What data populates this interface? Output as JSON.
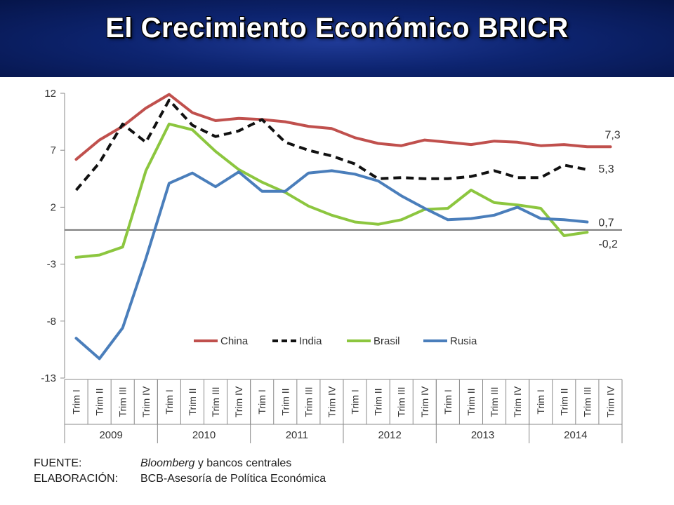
{
  "slide": {
    "title": "El Crecimiento Económico BRICR"
  },
  "chart_data": {
    "type": "line",
    "x": [
      "Trim I",
      "Trim II",
      "Trim III",
      "Trim IV",
      "Trim I",
      "Trim II",
      "Trim III",
      "Trim IV",
      "Trim I",
      "Trim II",
      "Trim III",
      "Trim IV",
      "Trim I",
      "Trim II",
      "Trim III",
      "Trim IV",
      "Trim I",
      "Trim II",
      "Trim III",
      "Trim IV",
      "Trim I",
      "Trim II",
      "Trim III",
      "Trim IV"
    ],
    "year_groups": [
      {
        "label": "2009",
        "start": 0,
        "count": 4
      },
      {
        "label": "2010",
        "start": 4,
        "count": 4
      },
      {
        "label": "2011",
        "start": 8,
        "count": 4
      },
      {
        "label": "2012",
        "start": 12,
        "count": 4
      },
      {
        "label": "2013",
        "start": 16,
        "count": 4
      },
      {
        "label": "2014",
        "start": 20,
        "count": 4
      }
    ],
    "ylim": [
      -13,
      12
    ],
    "yticks": [
      12,
      7,
      2,
      -3,
      -8,
      -13
    ],
    "zero_line": 0,
    "series": [
      {
        "name": "China",
        "color": "#c0504d",
        "dash": "solid",
        "values": [
          6.2,
          7.9,
          9.1,
          10.7,
          11.9,
          10.3,
          9.6,
          9.8,
          9.7,
          9.5,
          9.1,
          8.9,
          8.1,
          7.6,
          7.4,
          7.9,
          7.7,
          7.5,
          7.8,
          7.7,
          7.4,
          7.5,
          7.3,
          7.3
        ],
        "end_label": "7,3"
      },
      {
        "name": "India",
        "color": "#111111",
        "dash": "dashed",
        "values": [
          3.5,
          5.9,
          9.3,
          7.7,
          11.4,
          9.2,
          8.2,
          8.7,
          9.7,
          7.7,
          7.0,
          6.5,
          5.8,
          4.5,
          4.6,
          4.5,
          4.5,
          4.7,
          5.2,
          4.6,
          4.6,
          5.7,
          5.3,
          null
        ],
        "end_label": "5,3"
      },
      {
        "name": "Brasil",
        "color": "#8cc63f",
        "dash": "solid",
        "values": [
          -2.4,
          -2.2,
          -1.5,
          5.2,
          9.3,
          8.8,
          6.9,
          5.3,
          4.2,
          3.3,
          2.1,
          1.3,
          0.7,
          0.5,
          0.9,
          1.8,
          1.9,
          3.5,
          2.4,
          2.2,
          1.9,
          -0.5,
          -0.2,
          null
        ],
        "end_label": "-0,2"
      },
      {
        "name": "Russia",
        "color": "#4a7ebb",
        "dash": "solid",
        "values": [
          -9.5,
          -11.3,
          -8.6,
          -2.5,
          4.1,
          5.0,
          3.8,
          5.1,
          3.4,
          3.4,
          5.0,
          5.2,
          4.9,
          4.3,
          3.0,
          1.9,
          0.9,
          1.0,
          1.3,
          2.0,
          1.0,
          0.9,
          0.7,
          null
        ],
        "legend_name": "Rusia",
        "end_label": "0,7"
      }
    ],
    "legend": [
      "China",
      "India",
      "Brasil",
      "Rusia"
    ],
    "legend_position": "lower-right inside plot"
  },
  "footer": {
    "source_label": "FUENTE:",
    "source_italic": "Bloomberg",
    "source_rest": " y bancos centrales",
    "elab_label": "ELABORACIÓN:",
    "elab_value": "BCB-Asesoría de Política Económica"
  }
}
